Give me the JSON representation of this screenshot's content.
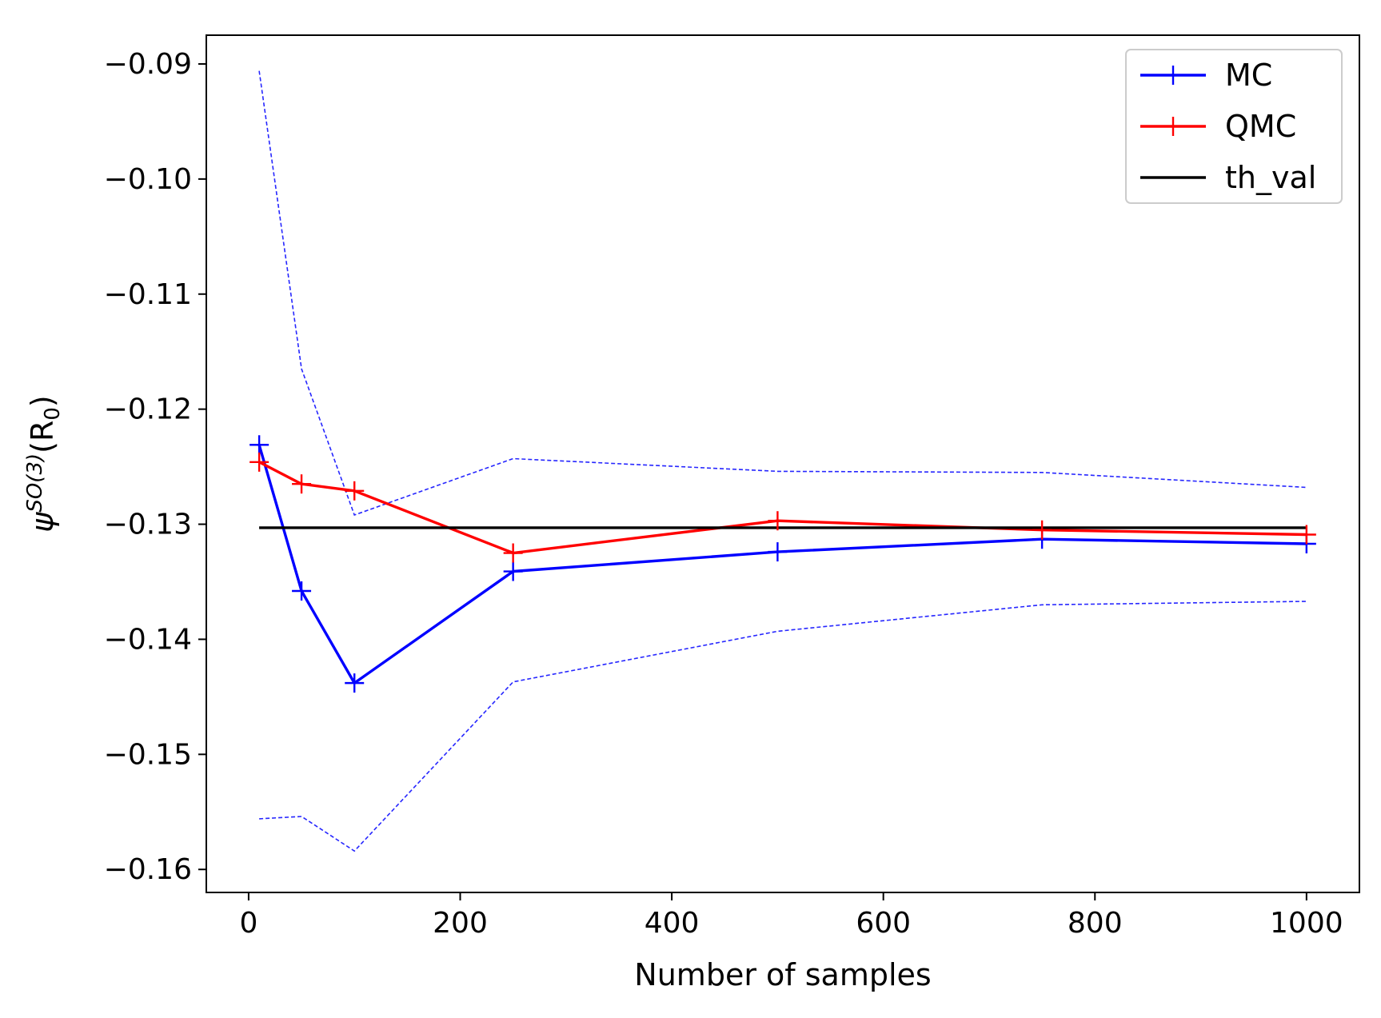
{
  "chart_data": {
    "type": "line",
    "xlabel": "Number of samples",
    "ylabel": "ψ^{SO(3)}(R_0)",
    "ylabel_main": "ψ",
    "ylabel_sup": "SO(3)",
    "ylabel_tail": "(R",
    "ylabel_sub": "0",
    "ylabel_close": ")",
    "xlim": [
      -40,
      1050
    ],
    "ylim": [
      -0.162,
      -0.0875
    ],
    "xticks": [
      0,
      200,
      400,
      600,
      800,
      1000
    ],
    "xtick_labels": [
      "0",
      "200",
      "400",
      "600",
      "800",
      "1000"
    ],
    "yticks": [
      -0.09,
      -0.1,
      -0.11,
      -0.12,
      -0.13,
      -0.14,
      -0.15,
      -0.16
    ],
    "ytick_labels": [
      "−0.09",
      "−0.10",
      "−0.11",
      "−0.12",
      "−0.13",
      "−0.14",
      "−0.15",
      "−0.16"
    ],
    "grid": false,
    "legend_position": "top-right",
    "x": [
      10,
      50,
      100,
      250,
      500,
      750,
      1000
    ],
    "series": [
      {
        "name": "MC",
        "color": "#0000ff",
        "marker": "+",
        "values": [
          -0.1231,
          -0.1358,
          -0.1438,
          -0.1341,
          -0.1324,
          -0.1313,
          -0.1317
        ]
      },
      {
        "name": "QMC",
        "color": "#ff0000",
        "marker": "+",
        "values": [
          -0.1246,
          -0.1265,
          -0.1271,
          -0.1325,
          -0.1297,
          -0.1305,
          -0.1309
        ]
      },
      {
        "name": "th_val",
        "color": "#000000",
        "marker": "none",
        "x": [
          10,
          1000
        ],
        "values": [
          -0.1303,
          -0.1303
        ]
      }
    ],
    "bands": [
      {
        "of": "MC",
        "bound": "upper",
        "color": "#0000ff",
        "style": "dashed",
        "values": [
          -0.0906,
          -0.1165,
          -0.1292,
          -0.1243,
          -0.1254,
          -0.1255,
          -0.1268
        ]
      },
      {
        "of": "MC",
        "bound": "lower",
        "color": "#0000ff",
        "style": "dashed",
        "values": [
          -0.1556,
          -0.1554,
          -0.1584,
          -0.1437,
          -0.1393,
          -0.137,
          -0.1367
        ]
      }
    ]
  }
}
